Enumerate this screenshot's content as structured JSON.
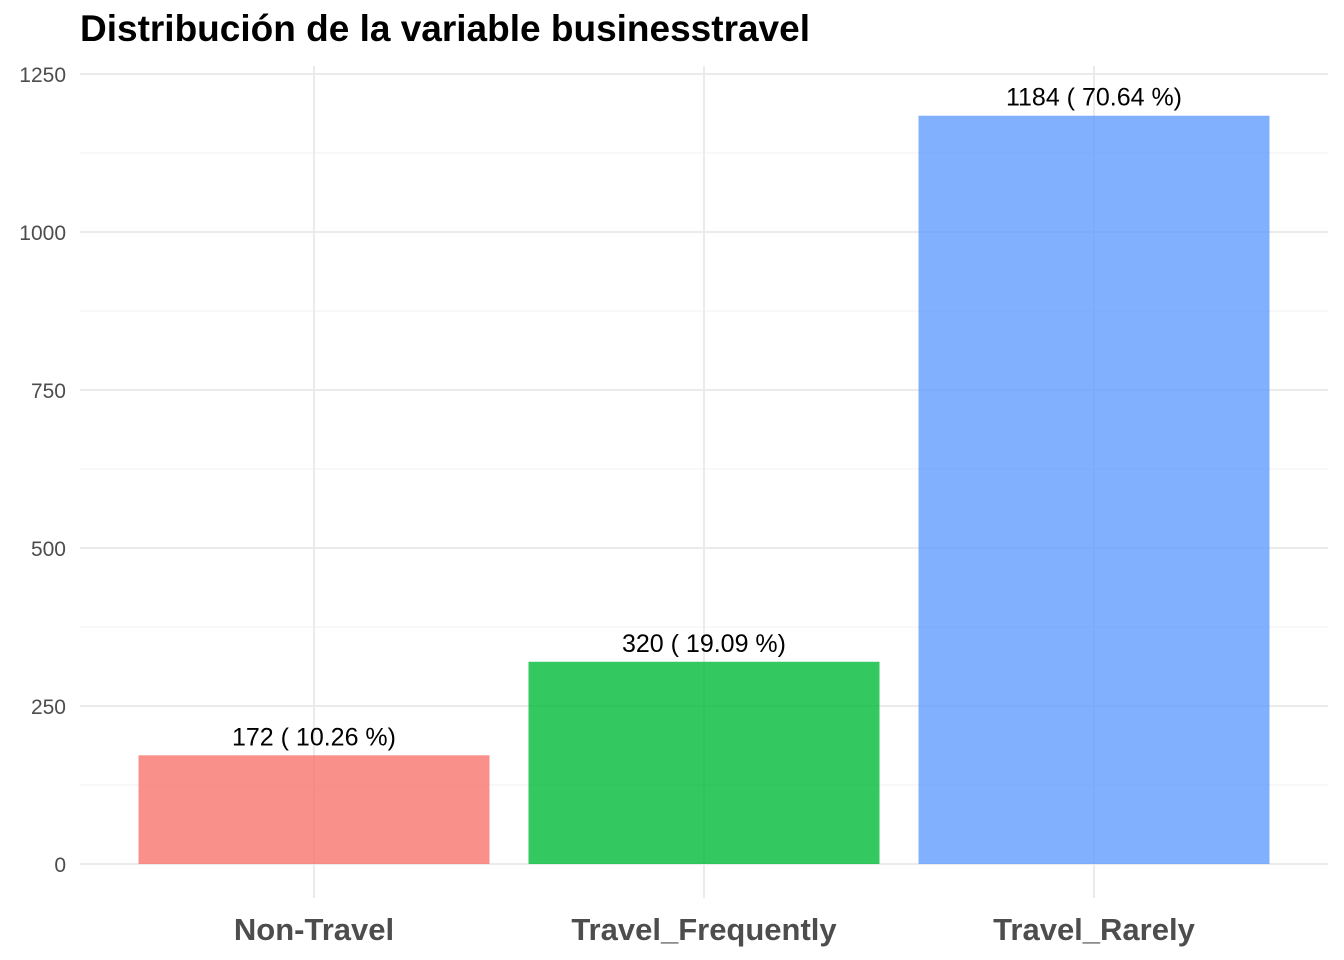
{
  "chart_data": {
    "type": "bar",
    "title": "Distribución de la variable businesstravel",
    "xlabel": "",
    "ylabel": "",
    "categories": [
      "Non-Travel",
      "Travel_Frequently",
      "Travel_Rarely"
    ],
    "values": [
      172,
      320,
      1184
    ],
    "data_labels": [
      "172  ( 10.26 %)",
      "320  ( 19.09 %)",
      "1184  ( 70.64 %)"
    ],
    "colors": [
      "#F8766D",
      "#00BA38",
      "#619CFF"
    ],
    "bar_opacity": 0.8,
    "ylim": [
      0,
      1250
    ],
    "y_ticks": [
      0,
      250,
      500,
      750,
      1000,
      1250
    ],
    "y_tick_labels": [
      "0",
      "250",
      "500",
      "750",
      "1000",
      "1250"
    ],
    "grid": true,
    "legend": "none"
  }
}
